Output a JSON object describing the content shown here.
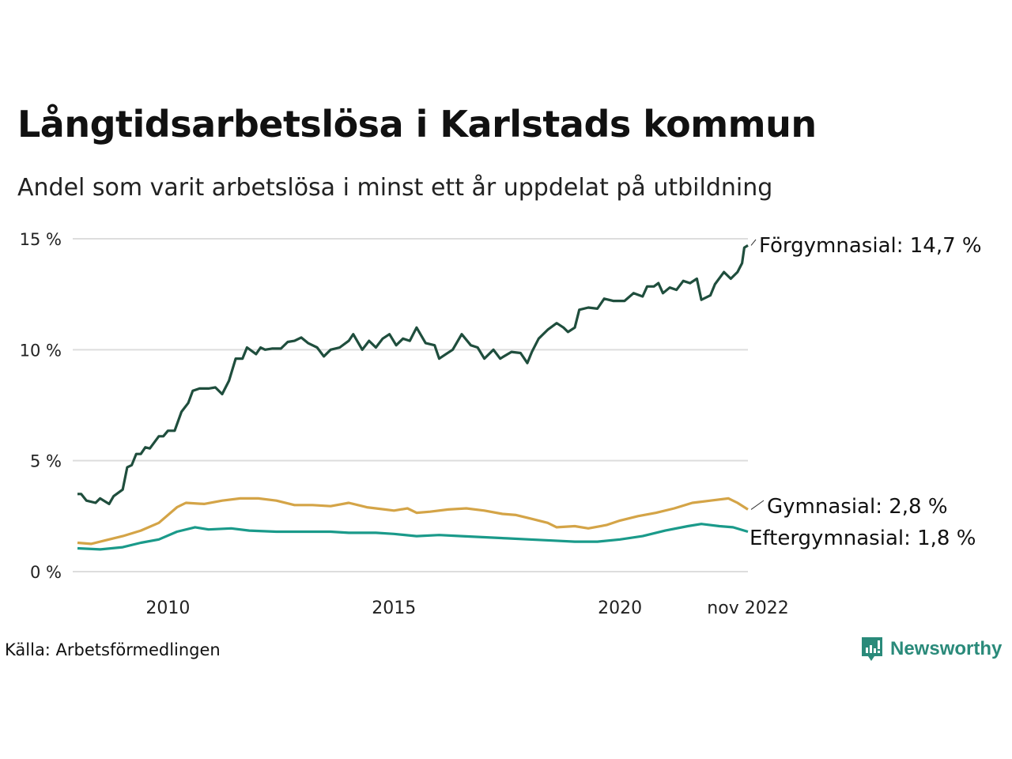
{
  "chart_data": {
    "type": "line",
    "title": "Långtidsarbetslösa i Karlstads kommun",
    "subtitle": "Andel som varit arbetslösa i minst ett år uppdelat på utbildning",
    "source": "Källa: Arbetsförmedlingen",
    "brand": "Newsworthy",
    "ylim": [
      0,
      15
    ],
    "xlim": [
      2008.0,
      2022.83
    ],
    "yticks": [
      {
        "v": 0,
        "label": "0 %"
      },
      {
        "v": 5,
        "label": "5 %"
      },
      {
        "v": 10,
        "label": "10 %"
      },
      {
        "v": 15,
        "label": "15 %"
      }
    ],
    "xticks": [
      {
        "v": 2010,
        "label": "2010"
      },
      {
        "v": 2015,
        "label": "2015"
      },
      {
        "v": 2020,
        "label": "2020"
      },
      {
        "v": 2022.83,
        "label": "nov 2022"
      }
    ],
    "grid": true,
    "series": [
      {
        "name": "Förgymnasial",
        "label": "Förgymnasial: 14,7 %",
        "color": "#1f4e3d",
        "points": [
          [
            2008.0,
            3.5
          ],
          [
            2008.08,
            3.5
          ],
          [
            2008.2,
            3.2
          ],
          [
            2008.4,
            3.1
          ],
          [
            2008.5,
            3.3
          ],
          [
            2008.7,
            3.05
          ],
          [
            2008.8,
            3.4
          ],
          [
            2009.0,
            3.7
          ],
          [
            2009.1,
            4.7
          ],
          [
            2009.2,
            4.8
          ],
          [
            2009.3,
            5.3
          ],
          [
            2009.4,
            5.3
          ],
          [
            2009.5,
            5.6
          ],
          [
            2009.6,
            5.55
          ],
          [
            2009.8,
            6.1
          ],
          [
            2009.9,
            6.1
          ],
          [
            2010.0,
            6.35
          ],
          [
            2010.15,
            6.35
          ],
          [
            2010.3,
            7.2
          ],
          [
            2010.45,
            7.6
          ],
          [
            2010.55,
            8.15
          ],
          [
            2010.7,
            8.25
          ],
          [
            2010.9,
            8.25
          ],
          [
            2011.05,
            8.3
          ],
          [
            2011.2,
            8.0
          ],
          [
            2011.35,
            8.6
          ],
          [
            2011.5,
            9.6
          ],
          [
            2011.65,
            9.6
          ],
          [
            2011.75,
            10.1
          ],
          [
            2011.95,
            9.8
          ],
          [
            2012.05,
            10.1
          ],
          [
            2012.15,
            10.0
          ],
          [
            2012.3,
            10.05
          ],
          [
            2012.5,
            10.05
          ],
          [
            2012.65,
            10.35
          ],
          [
            2012.8,
            10.4
          ],
          [
            2012.95,
            10.55
          ],
          [
            2013.1,
            10.3
          ],
          [
            2013.3,
            10.1
          ],
          [
            2013.45,
            9.7
          ],
          [
            2013.6,
            10.0
          ],
          [
            2013.8,
            10.1
          ],
          [
            2014.0,
            10.4
          ],
          [
            2014.1,
            10.7
          ],
          [
            2014.3,
            10.0
          ],
          [
            2014.45,
            10.4
          ],
          [
            2014.6,
            10.1
          ],
          [
            2014.75,
            10.5
          ],
          [
            2014.9,
            10.7
          ],
          [
            2015.05,
            10.2
          ],
          [
            2015.2,
            10.5
          ],
          [
            2015.35,
            10.4
          ],
          [
            2015.5,
            11.0
          ],
          [
            2015.7,
            10.3
          ],
          [
            2015.9,
            10.2
          ],
          [
            2016.0,
            9.6
          ],
          [
            2016.15,
            9.8
          ],
          [
            2016.3,
            10.0
          ],
          [
            2016.5,
            10.7
          ],
          [
            2016.7,
            10.2
          ],
          [
            2016.85,
            10.1
          ],
          [
            2017.0,
            9.6
          ],
          [
            2017.2,
            10.0
          ],
          [
            2017.35,
            9.6
          ],
          [
            2017.6,
            9.9
          ],
          [
            2017.8,
            9.85
          ],
          [
            2017.95,
            9.4
          ],
          [
            2018.05,
            9.9
          ],
          [
            2018.2,
            10.5
          ],
          [
            2018.4,
            10.9
          ],
          [
            2018.6,
            11.2
          ],
          [
            2018.75,
            11.0
          ],
          [
            2018.85,
            10.8
          ],
          [
            2019.0,
            11.0
          ],
          [
            2019.1,
            11.8
          ],
          [
            2019.3,
            11.9
          ],
          [
            2019.5,
            11.85
          ],
          [
            2019.65,
            12.3
          ],
          [
            2019.85,
            12.2
          ],
          [
            2020.1,
            12.2
          ],
          [
            2020.3,
            12.55
          ],
          [
            2020.5,
            12.4
          ],
          [
            2020.6,
            12.85
          ],
          [
            2020.75,
            12.85
          ],
          [
            2020.85,
            13.0
          ],
          [
            2020.95,
            12.55
          ],
          [
            2021.1,
            12.8
          ],
          [
            2021.25,
            12.7
          ],
          [
            2021.4,
            13.1
          ],
          [
            2021.55,
            13.0
          ],
          [
            2021.7,
            13.2
          ],
          [
            2021.8,
            12.25
          ],
          [
            2022.0,
            12.45
          ],
          [
            2022.1,
            12.95
          ],
          [
            2022.3,
            13.5
          ],
          [
            2022.45,
            13.2
          ],
          [
            2022.6,
            13.5
          ],
          [
            2022.7,
            13.9
          ],
          [
            2022.75,
            14.6
          ],
          [
            2022.83,
            14.7
          ]
        ]
      },
      {
        "name": "Gymnasial",
        "label": "Gymnasial:  2,8 %",
        "color": "#d4a447",
        "points": [
          [
            2008.0,
            1.3
          ],
          [
            2008.3,
            1.25
          ],
          [
            2008.6,
            1.4
          ],
          [
            2009.0,
            1.6
          ],
          [
            2009.4,
            1.85
          ],
          [
            2009.8,
            2.2
          ],
          [
            2010.2,
            2.9
          ],
          [
            2010.4,
            3.1
          ],
          [
            2010.8,
            3.05
          ],
          [
            2011.2,
            3.2
          ],
          [
            2011.6,
            3.3
          ],
          [
            2012.0,
            3.3
          ],
          [
            2012.4,
            3.2
          ],
          [
            2012.8,
            3.0
          ],
          [
            2013.2,
            3.0
          ],
          [
            2013.6,
            2.95
          ],
          [
            2014.0,
            3.1
          ],
          [
            2014.4,
            2.9
          ],
          [
            2014.8,
            2.8
          ],
          [
            2015.0,
            2.75
          ],
          [
            2015.3,
            2.85
          ],
          [
            2015.5,
            2.65
          ],
          [
            2015.8,
            2.7
          ],
          [
            2016.2,
            2.8
          ],
          [
            2016.6,
            2.85
          ],
          [
            2017.0,
            2.75
          ],
          [
            2017.4,
            2.6
          ],
          [
            2017.7,
            2.55
          ],
          [
            2018.0,
            2.4
          ],
          [
            2018.4,
            2.2
          ],
          [
            2018.6,
            2.0
          ],
          [
            2019.0,
            2.05
          ],
          [
            2019.3,
            1.95
          ],
          [
            2019.7,
            2.1
          ],
          [
            2020.0,
            2.3
          ],
          [
            2020.4,
            2.5
          ],
          [
            2020.8,
            2.65
          ],
          [
            2021.2,
            2.85
          ],
          [
            2021.6,
            3.1
          ],
          [
            2022.0,
            3.2
          ],
          [
            2022.4,
            3.3
          ],
          [
            2022.6,
            3.1
          ],
          [
            2022.83,
            2.8
          ]
        ]
      },
      {
        "name": "Eftergymnasial",
        "label": "Eftergymnasial:  1,8 %",
        "color": "#1a9a8a",
        "points": [
          [
            2008.0,
            1.05
          ],
          [
            2008.5,
            1.0
          ],
          [
            2009.0,
            1.1
          ],
          [
            2009.4,
            1.3
          ],
          [
            2009.8,
            1.45
          ],
          [
            2010.2,
            1.8
          ],
          [
            2010.6,
            2.0
          ],
          [
            2010.9,
            1.9
          ],
          [
            2011.4,
            1.95
          ],
          [
            2011.8,
            1.85
          ],
          [
            2012.4,
            1.8
          ],
          [
            2013.0,
            1.8
          ],
          [
            2013.6,
            1.8
          ],
          [
            2014.0,
            1.75
          ],
          [
            2014.6,
            1.75
          ],
          [
            2015.0,
            1.7
          ],
          [
            2015.5,
            1.6
          ],
          [
            2016.0,
            1.65
          ],
          [
            2016.5,
            1.6
          ],
          [
            2017.0,
            1.55
          ],
          [
            2017.5,
            1.5
          ],
          [
            2018.0,
            1.45
          ],
          [
            2018.5,
            1.4
          ],
          [
            2019.0,
            1.35
          ],
          [
            2019.5,
            1.35
          ],
          [
            2020.0,
            1.45
          ],
          [
            2020.5,
            1.6
          ],
          [
            2021.0,
            1.85
          ],
          [
            2021.5,
            2.05
          ],
          [
            2021.8,
            2.15
          ],
          [
            2022.2,
            2.05
          ],
          [
            2022.5,
            2.0
          ],
          [
            2022.83,
            1.8
          ]
        ]
      }
    ]
  }
}
